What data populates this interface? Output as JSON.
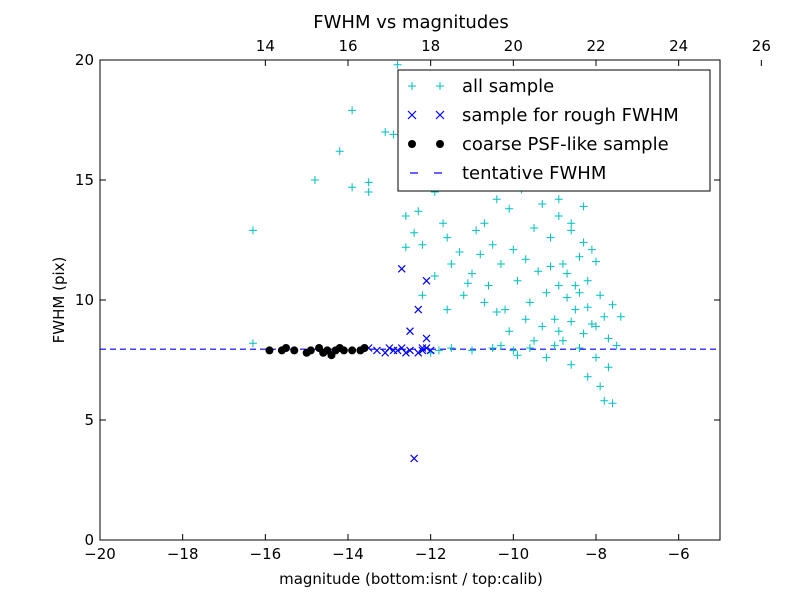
{
  "chart_data": {
    "type": "scatter",
    "title": "FWHM vs magnitudes",
    "xlabel": "magnitude (bottom:isnt / top:calib)",
    "ylabel": "FWHM (pix)",
    "xlim": [
      -20,
      -5
    ],
    "ylim": [
      0,
      20
    ],
    "x_ticks": [
      -20,
      -18,
      -16,
      -14,
      -12,
      -10,
      -8,
      -6
    ],
    "x_tick_labels": [
      "−20",
      "−18",
      "−16",
      "−14",
      "−12",
      "−10",
      "−8",
      "−6"
    ],
    "y_ticks": [
      0,
      5,
      10,
      15,
      20
    ],
    "y_tick_labels": [
      "0",
      "5",
      "10",
      "15",
      "20"
    ],
    "top_axis": {
      "offset": 30,
      "ticks": [
        14,
        16,
        18,
        20,
        22,
        24,
        26
      ],
      "tick_labels": [
        "14",
        "16",
        "18",
        "20",
        "22",
        "24",
        "26"
      ]
    },
    "grid": false,
    "legend_position": "upper right",
    "colors": {
      "all_sample": "#00bfbf",
      "rough_sample": "#0000ff",
      "coarse_sample": "#000000",
      "tentative_line": "#0000ff"
    },
    "series": [
      {
        "name": "all sample",
        "marker": "+",
        "points": [
          [
            -16.3,
            12.9
          ],
          [
            -16.3,
            8.2
          ],
          [
            -14.8,
            15.0
          ],
          [
            -14.2,
            16.2
          ],
          [
            -13.9,
            17.9
          ],
          [
            -13.9,
            14.7
          ],
          [
            -13.5,
            14.9
          ],
          [
            -13.5,
            14.5
          ],
          [
            -13.1,
            17.0
          ],
          [
            -12.9,
            16.9
          ],
          [
            -12.6,
            13.5
          ],
          [
            -12.6,
            12.2
          ],
          [
            -12.4,
            12.8
          ],
          [
            -12.2,
            12.3
          ],
          [
            -12.3,
            13.7
          ],
          [
            -12.0,
            15.5
          ],
          [
            -11.9,
            14.5
          ],
          [
            -11.7,
            13.2
          ],
          [
            -11.6,
            12.6
          ],
          [
            -11.5,
            11.5
          ],
          [
            -11.3,
            12.0
          ],
          [
            -11.2,
            10.2
          ],
          [
            -11.0,
            11.1
          ],
          [
            -10.9,
            12.9
          ],
          [
            -10.8,
            11.9
          ],
          [
            -10.7,
            13.2
          ],
          [
            -10.6,
            10.6
          ],
          [
            -10.5,
            12.3
          ],
          [
            -10.4,
            14.2
          ],
          [
            -10.3,
            11.5
          ],
          [
            -10.2,
            9.6
          ],
          [
            -10.1,
            13.8
          ],
          [
            -10.0,
            12.1
          ],
          [
            -9.9,
            10.8
          ],
          [
            -9.8,
            14.6
          ],
          [
            -9.7,
            11.7
          ],
          [
            -9.6,
            9.9
          ],
          [
            -9.5,
            13.0
          ],
          [
            -9.4,
            11.2
          ],
          [
            -9.3,
            14.0
          ],
          [
            -9.2,
            10.3
          ],
          [
            -9.1,
            12.6
          ],
          [
            -9.0,
            9.2
          ],
          [
            -8.9,
            13.5
          ],
          [
            -8.8,
            11.5
          ],
          [
            -8.7,
            10.1
          ],
          [
            -8.6,
            12.9
          ],
          [
            -8.5,
            9.6
          ],
          [
            -8.4,
            11.8
          ],
          [
            -8.3,
            13.9
          ],
          [
            -8.2,
            10.8
          ],
          [
            -8.1,
            9.0
          ],
          [
            -8.0,
            11.6
          ],
          [
            -7.9,
            10.2
          ],
          [
            -7.8,
            9.3
          ],
          [
            -7.7,
            8.4
          ],
          [
            -7.6,
            9.8
          ],
          [
            -9.5,
            8.3
          ],
          [
            -9.2,
            7.6
          ],
          [
            -8.9,
            8.7
          ],
          [
            -8.6,
            7.3
          ],
          [
            -8.4,
            8.0
          ],
          [
            -8.2,
            6.8
          ],
          [
            -8.0,
            7.6
          ],
          [
            -7.9,
            6.4
          ],
          [
            -7.8,
            5.8
          ],
          [
            -7.6,
            5.7
          ],
          [
            -8.7,
            15.6
          ],
          [
            -8.5,
            16.6
          ],
          [
            -8.4,
            17.1
          ],
          [
            -8.1,
            15.4
          ],
          [
            -9.0,
            15.3
          ],
          [
            -9.4,
            16.4
          ],
          [
            -10.6,
            18.4
          ],
          [
            -11.4,
            19.4
          ],
          [
            -11.0,
            19.0
          ],
          [
            -12.1,
            17.2
          ],
          [
            -12.8,
            19.8
          ],
          [
            -11.5,
            8.0
          ],
          [
            -11.0,
            7.9
          ],
          [
            -10.5,
            8.0
          ],
          [
            -10.0,
            7.9
          ],
          [
            -9.6,
            8.0
          ],
          [
            -11.8,
            7.9
          ],
          [
            -12.0,
            7.8
          ],
          [
            -9.0,
            8.1
          ],
          [
            -9.9,
            7.7
          ],
          [
            -10.3,
            8.1
          ],
          [
            -8.8,
            8.3
          ],
          [
            -8.3,
            8.6
          ],
          [
            -12.0,
            19.0
          ],
          [
            -11.2,
            17.1
          ],
          [
            -10.8,
            16.2
          ],
          [
            -10.2,
            17.5
          ],
          [
            -9.6,
            15.0
          ],
          [
            -9.8,
            16.9
          ],
          [
            -8.9,
            14.2
          ],
          [
            -8.6,
            13.2
          ],
          [
            -8.3,
            12.4
          ],
          [
            -8.5,
            10.6
          ],
          [
            -8.7,
            11.1
          ],
          [
            -8.2,
            9.7
          ],
          [
            -8.0,
            8.9
          ],
          [
            -8.1,
            12.1
          ],
          [
            -8.4,
            10.3
          ],
          [
            -8.6,
            9.1
          ],
          [
            -8.9,
            10.6
          ],
          [
            -9.1,
            11.4
          ],
          [
            -9.3,
            8.9
          ],
          [
            -9.7,
            9.2
          ],
          [
            -10.1,
            8.7
          ],
          [
            -10.4,
            9.5
          ],
          [
            -10.7,
            9.9
          ],
          [
            -11.1,
            10.7
          ],
          [
            -11.6,
            9.6
          ],
          [
            -11.9,
            11.0
          ],
          [
            -12.2,
            10.2
          ],
          [
            -7.7,
            7.2
          ],
          [
            -7.5,
            8.1
          ],
          [
            -7.4,
            9.3
          ]
        ]
      },
      {
        "name": "sample for rough FWHM",
        "marker": "x",
        "points": [
          [
            -12.7,
            11.3
          ],
          [
            -12.1,
            10.8
          ],
          [
            -12.3,
            9.6
          ],
          [
            -12.5,
            8.7
          ],
          [
            -12.1,
            8.4
          ],
          [
            -12.4,
            3.4
          ],
          [
            -13.5,
            8.0
          ],
          [
            -13.3,
            7.9
          ],
          [
            -13.1,
            7.8
          ],
          [
            -12.9,
            7.9
          ],
          [
            -12.7,
            8.0
          ],
          [
            -12.5,
            7.9
          ],
          [
            -12.3,
            7.8
          ],
          [
            -12.2,
            8.0
          ],
          [
            -12.0,
            7.9
          ],
          [
            -13.0,
            8.0
          ],
          [
            -12.6,
            7.8
          ],
          [
            -12.8,
            7.9
          ],
          [
            -12.2,
            7.9
          ],
          [
            -12.1,
            8.0
          ]
        ]
      },
      {
        "name": "coarse PSF-like sample",
        "marker": "o",
        "points": [
          [
            -15.9,
            7.9
          ],
          [
            -15.5,
            8.0
          ],
          [
            -15.3,
            7.9
          ],
          [
            -15.0,
            7.8
          ],
          [
            -14.7,
            8.0
          ],
          [
            -14.5,
            7.9
          ],
          [
            -14.4,
            7.7
          ],
          [
            -14.2,
            8.0
          ],
          [
            -14.1,
            7.9
          ],
          [
            -13.9,
            7.9
          ],
          [
            -13.6,
            8.0
          ],
          [
            -14.6,
            7.8
          ],
          [
            -14.3,
            7.9
          ],
          [
            -13.7,
            7.9
          ],
          [
            -15.6,
            7.9
          ],
          [
            -14.9,
            7.9
          ]
        ]
      }
    ],
    "tentative_fwhm": 7.95,
    "legend": [
      {
        "label": "all sample",
        "marker": "+"
      },
      {
        "label": "sample for rough FWHM",
        "marker": "x"
      },
      {
        "label": "coarse PSF-like sample",
        "marker": "o"
      },
      {
        "label": "tentative FWHM",
        "marker": "dashed-line"
      }
    ]
  }
}
